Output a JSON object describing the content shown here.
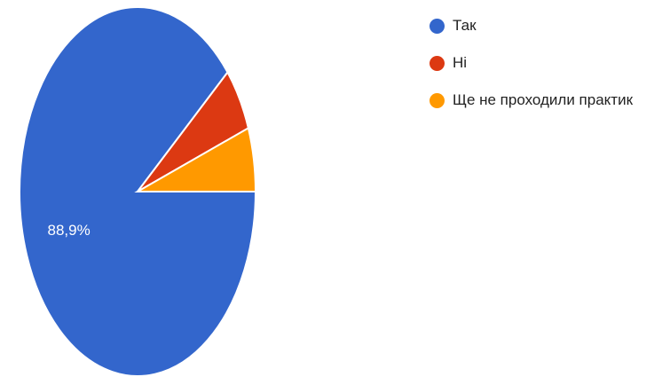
{
  "chart_data": {
    "type": "pie",
    "labels": [
      "Так",
      "Ні",
      "Ще не проходили практик"
    ],
    "values": [
      88.9,
      5.6,
      5.6
    ],
    "colors": [
      "#3366cc",
      "#dc3912",
      "#ff9900"
    ],
    "data_labels": [
      "88,9%",
      "",
      ""
    ],
    "legend_position": "right"
  }
}
